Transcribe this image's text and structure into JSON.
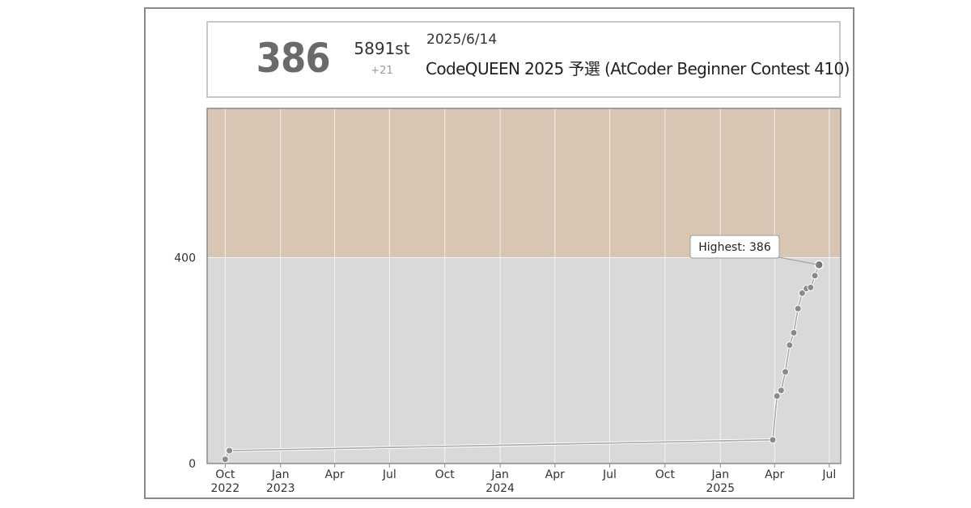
{
  "status": {
    "rating": "386",
    "rank": "5891st",
    "diff": "+21",
    "date": "2025/6/14",
    "contest": "CodeQUEEN 2025 予選 (AtCoder Beginner Contest 410)"
  },
  "chart_data": {
    "type": "line",
    "x_axis": {
      "range": [
        "2022-09-01",
        "2025-07-20"
      ],
      "ticks": [
        {
          "date": "2022-10-01",
          "label": "Oct",
          "year": "2022"
        },
        {
          "date": "2023-01-01",
          "label": "Jan",
          "year": "2023"
        },
        {
          "date": "2023-04-01",
          "label": "Apr",
          "year": ""
        },
        {
          "date": "2023-07-01",
          "label": "Jul",
          "year": ""
        },
        {
          "date": "2023-10-01",
          "label": "Oct",
          "year": ""
        },
        {
          "date": "2024-01-01",
          "label": "Jan",
          "year": "2024"
        },
        {
          "date": "2024-04-01",
          "label": "Apr",
          "year": ""
        },
        {
          "date": "2024-07-01",
          "label": "Jul",
          "year": ""
        },
        {
          "date": "2024-10-01",
          "label": "Oct",
          "year": ""
        },
        {
          "date": "2025-01-01",
          "label": "Jan",
          "year": "2025"
        },
        {
          "date": "2025-04-01",
          "label": "Apr",
          "year": ""
        },
        {
          "date": "2025-07-01",
          "label": "Jul",
          "year": ""
        }
      ]
    },
    "y_axis": {
      "range": [
        0,
        690
      ],
      "ticks": [
        0,
        400
      ]
    },
    "bands": [
      {
        "from": 0,
        "to": 400,
        "color": "#d9d9d9"
      },
      {
        "from": 400,
        "to": 690,
        "color": "#d8c5b3"
      }
    ],
    "grid": true,
    "series": [
      {
        "points": [
          {
            "date": "2022-10-01",
            "rating": 8
          },
          {
            "date": "2022-10-08",
            "rating": 25
          },
          {
            "date": "2025-03-29",
            "rating": 46
          },
          {
            "date": "2025-04-05",
            "rating": 131
          },
          {
            "date": "2025-04-12",
            "rating": 142
          },
          {
            "date": "2025-04-19",
            "rating": 178
          },
          {
            "date": "2025-04-26",
            "rating": 230
          },
          {
            "date": "2025-05-03",
            "rating": 254
          },
          {
            "date": "2025-05-10",
            "rating": 301
          },
          {
            "date": "2025-05-17",
            "rating": 331
          },
          {
            "date": "2025-05-24",
            "rating": 340
          },
          {
            "date": "2025-05-31",
            "rating": 342
          },
          {
            "date": "2025-06-07",
            "rating": 365
          },
          {
            "date": "2025-06-14",
            "rating": 386
          }
        ]
      }
    ],
    "annotation": {
      "label": "Highest: 386",
      "point_date": "2025-06-14",
      "point_rating": 386
    }
  }
}
